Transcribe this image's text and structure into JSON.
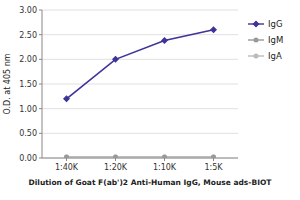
{
  "chart_data": {
    "type": "line",
    "categories": [
      "1:40K",
      "1:20K",
      "1:10K",
      "1:5K"
    ],
    "series": [
      {
        "name": "IgG",
        "color": "#3d3399",
        "marker": "diamond",
        "values": [
          1.2,
          2.0,
          2.38,
          2.6
        ]
      },
      {
        "name": "IgM",
        "color": "#999999",
        "marker": "circle",
        "values": [
          0.02,
          0.02,
          0.02,
          0.02
        ]
      },
      {
        "name": "IgA",
        "color": "#bbbbbb",
        "marker": "circle",
        "values": [
          0.02,
          0.02,
          0.02,
          0.02
        ]
      }
    ],
    "x_label": "Dilution of Goat F(ab')2 Anti-Human IgG, Mouse ads-BIOT",
    "y_label": "O.D. at 405 nm",
    "ylim": [
      0.0,
      3.0
    ],
    "yticks": [
      {
        "value": 0.0,
        "label": "0.00"
      },
      {
        "value": 0.5,
        "label": "0.50"
      },
      {
        "value": 1.0,
        "label": "1.00"
      },
      {
        "value": 1.5,
        "label": "1.50"
      },
      {
        "value": 2.0,
        "label": "2.00"
      },
      {
        "value": 2.5,
        "label": "2.50"
      },
      {
        "value": 3.0,
        "label": "3.00"
      }
    ],
    "grid": true,
    "legend": "right"
  }
}
